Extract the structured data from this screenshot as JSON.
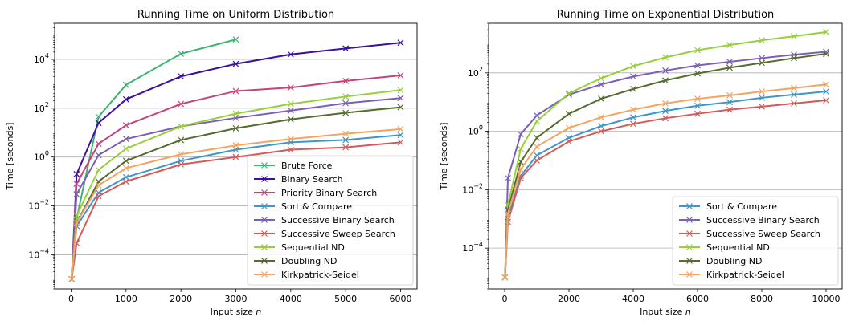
{
  "chart_data": [
    {
      "type": "line",
      "title": "Running Time on Uniform Distribution",
      "xlabel": "Input size n",
      "ylabel": "Time [seconds]",
      "xlim": [
        -300,
        6300
      ],
      "ylim": [
        4e-06,
        300000
      ],
      "yscale": "log",
      "grid": "horizontal",
      "legend_position": "lower-right",
      "xticks": [
        0,
        1000,
        2000,
        3000,
        4000,
        5000,
        6000
      ],
      "xtick_labels": [
        "0",
        "1000",
        "2000",
        "3000",
        "4000",
        "5000",
        "6000"
      ],
      "yticks": [
        0.0001,
        0.01,
        1,
        100,
        10000
      ],
      "ytick_labels": [
        "10^-4",
        "10^-2",
        "10^0",
        "10^2",
        "10^4"
      ],
      "series": [
        {
          "name": "Brute Force",
          "color": "#3cb371",
          "x": [
            10,
            100,
            500,
            1000,
            2000,
            3000
          ],
          "y": [
            1e-05,
            0.003,
            45,
            900,
            17000,
            65000
          ]
        },
        {
          "name": "Binary Search",
          "color": "#3b0f9f",
          "x": [
            10,
            100,
            500,
            1000,
            2000,
            3000,
            4000,
            5000,
            6000
          ],
          "y": [
            1e-05,
            0.2,
            25,
            230,
            2000,
            6500,
            16000,
            28000,
            48000
          ]
        },
        {
          "name": "Priority Binary Search",
          "color": "#c2457a",
          "x": [
            10,
            100,
            500,
            1000,
            2000,
            3000,
            4000,
            5000,
            6000
          ],
          "y": [
            1e-05,
            0.08,
            3.5,
            20,
            150,
            500,
            700,
            1300,
            2200
          ]
        },
        {
          "name": "Sort & Compare",
          "color": "#3e97c8",
          "x": [
            10,
            100,
            500,
            1000,
            2000,
            3000,
            4000,
            5000,
            6000
          ],
          "y": [
            1e-05,
            0.0015,
            0.035,
            0.15,
            0.7,
            2,
            4,
            5,
            8
          ]
        },
        {
          "name": "Successive Binary Search",
          "color": "#7a5fb5",
          "x": [
            10,
            100,
            500,
            1000,
            2000,
            3000,
            4000,
            5000,
            6000
          ],
          "y": [
            1e-05,
            0.03,
            1.2,
            5.5,
            18,
            40,
            80,
            160,
            260
          ]
        },
        {
          "name": "Successive Sweep Search",
          "color": "#d45a5a",
          "x": [
            10,
            100,
            500,
            1000,
            2000,
            3000,
            4000,
            5000,
            6000
          ],
          "y": [
            1e-05,
            0.0003,
            0.025,
            0.1,
            0.5,
            1,
            2,
            2.5,
            4
          ]
        },
        {
          "name": "Sequential ND",
          "color": "#97cf3a",
          "x": [
            10,
            100,
            500,
            1000,
            2000,
            3000,
            4000,
            5000,
            6000
          ],
          "y": [
            1e-05,
            0.004,
            0.3,
            2.2,
            18,
            60,
            150,
            300,
            550
          ]
        },
        {
          "name": "Doubling ND",
          "color": "#556b2f",
          "x": [
            10,
            100,
            500,
            1000,
            2000,
            3000,
            4000,
            5000,
            6000
          ],
          "y": [
            1e-05,
            0.002,
            0.1,
            0.7,
            5,
            15,
            35,
            65,
            110
          ]
        },
        {
          "name": "Kirkpatrick-Seidel",
          "color": "#f4a460",
          "x": [
            10,
            100,
            500,
            1000,
            2000,
            3000,
            4000,
            5000,
            6000
          ],
          "y": [
            1e-05,
            0.002,
            0.07,
            0.35,
            1.3,
            3,
            5.5,
            9,
            14
          ]
        }
      ]
    },
    {
      "type": "line",
      "title": "Running Time on Exponential Distribution",
      "xlabel": "Input size n",
      "ylabel": "Time [seconds]",
      "xlim": [
        -500,
        10500
      ],
      "ylim": [
        4e-06,
        5000
      ],
      "yscale": "log",
      "grid": "horizontal",
      "legend_position": "lower-right",
      "xticks": [
        0,
        2000,
        4000,
        6000,
        8000,
        10000
      ],
      "xtick_labels": [
        "0",
        "2000",
        "4000",
        "6000",
        "8000",
        "10000"
      ],
      "yticks": [
        0.0001,
        0.01,
        1,
        100
      ],
      "ytick_labels": [
        "10^-4",
        "10^-2",
        "10^0",
        "10^2"
      ],
      "series": [
        {
          "name": "Sort & Compare",
          "color": "#3e97c8",
          "x": [
            10,
            100,
            500,
            1000,
            2000,
            3000,
            4000,
            5000,
            6000,
            7000,
            8000,
            9000,
            10000
          ],
          "y": [
            1e-05,
            0.001,
            0.03,
            0.15,
            0.6,
            1.5,
            3,
            5,
            7.5,
            10,
            14,
            18,
            23
          ]
        },
        {
          "name": "Successive Binary Search",
          "color": "#7a5fb5",
          "x": [
            10,
            100,
            500,
            1000,
            2000,
            3000,
            4000,
            5000,
            6000,
            7000,
            8000,
            9000,
            10000
          ],
          "y": [
            1e-05,
            0.025,
            0.8,
            3.5,
            18,
            40,
            75,
            120,
            180,
            240,
            320,
            420,
            530
          ]
        },
        {
          "name": "Successive Sweep Search",
          "color": "#d45a5a",
          "x": [
            10,
            100,
            500,
            1000,
            2000,
            3000,
            4000,
            5000,
            6000,
            7000,
            8000,
            9000,
            10000
          ],
          "y": [
            1e-05,
            0.0008,
            0.025,
            0.1,
            0.45,
            1,
            1.8,
            2.8,
            4,
            5.5,
            7,
            9,
            11.5
          ]
        },
        {
          "name": "Sequential ND",
          "color": "#97cf3a",
          "x": [
            10,
            100,
            500,
            1000,
            2000,
            3000,
            4000,
            5000,
            6000,
            7000,
            8000,
            9000,
            10000
          ],
          "y": [
            1e-05,
            0.003,
            0.25,
            2.2,
            20,
            65,
            170,
            340,
            600,
            900,
            1300,
            1800,
            2500
          ]
        },
        {
          "name": "Doubling ND",
          "color": "#556b2f",
          "x": [
            10,
            100,
            500,
            1000,
            2000,
            3000,
            4000,
            5000,
            6000,
            7000,
            8000,
            9000,
            10000
          ],
          "y": [
            1e-05,
            0.002,
            0.09,
            0.6,
            4,
            13,
            28,
            55,
            95,
            150,
            220,
            320,
            450
          ]
        },
        {
          "name": "Kirkpatrick-Seidel",
          "color": "#f4a460",
          "x": [
            10,
            100,
            500,
            1000,
            2000,
            3000,
            4000,
            5000,
            6000,
            7000,
            8000,
            9000,
            10000
          ],
          "y": [
            1e-05,
            0.0015,
            0.05,
            0.3,
            1.3,
            3,
            5.5,
            9,
            13,
            17,
            23,
            30,
            40
          ]
        }
      ]
    }
  ]
}
